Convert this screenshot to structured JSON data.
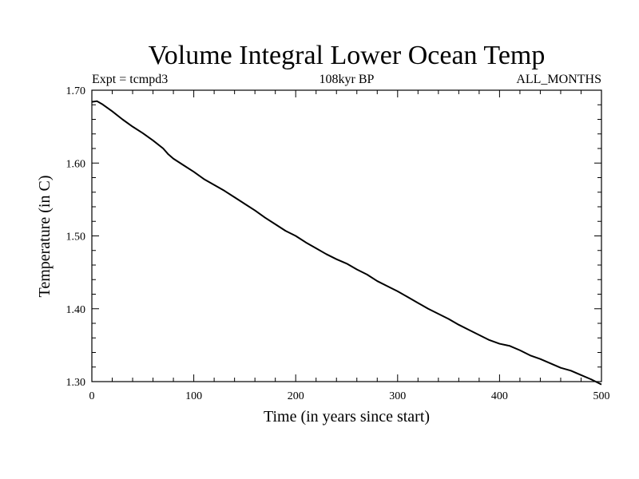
{
  "chart_data": {
    "type": "line",
    "title": "Volume Integral Lower Ocean Temp",
    "subtitle_left": "Expt = tcmpd3",
    "subtitle_center": "108kyr BP",
    "subtitle_right": "ALL_MONTHS",
    "xlabel": "Time (in years since start)",
    "ylabel": "Temperature (in C)",
    "xlim": [
      0,
      500
    ],
    "ylim": [
      1.3,
      1.7
    ],
    "xticks": [
      0,
      100,
      200,
      300,
      400,
      500
    ],
    "xtick_labels": [
      "0",
      "100",
      "200",
      "300",
      "400",
      "500"
    ],
    "yticks": [
      1.3,
      1.4,
      1.5,
      1.6,
      1.7
    ],
    "ytick_labels": [
      "1.30",
      "1.40",
      "1.50",
      "1.60",
      "1.70"
    ],
    "grid": false,
    "line_color": "#000000",
    "series": [
      {
        "x": [
          0,
          5,
          10,
          20,
          30,
          40,
          50,
          60,
          70,
          75,
          80,
          90,
          100,
          110,
          120,
          130,
          140,
          150,
          160,
          170,
          180,
          190,
          200,
          210,
          220,
          230,
          240,
          250,
          260,
          270,
          280,
          290,
          300,
          310,
          320,
          330,
          340,
          350,
          360,
          370,
          380,
          390,
          400,
          410,
          420,
          430,
          440,
          450,
          460,
          470,
          480,
          490,
          500
        ],
        "y": [
          1.684,
          1.685,
          1.681,
          1.671,
          1.66,
          1.65,
          1.641,
          1.631,
          1.62,
          1.612,
          1.606,
          1.597,
          1.588,
          1.578,
          1.57,
          1.562,
          1.553,
          1.544,
          1.535,
          1.525,
          1.516,
          1.507,
          1.5,
          1.491,
          1.483,
          1.475,
          1.468,
          1.462,
          1.454,
          1.447,
          1.438,
          1.431,
          1.424,
          1.416,
          1.408,
          1.4,
          1.393,
          1.386,
          1.378,
          1.371,
          1.364,
          1.357,
          1.352,
          1.349,
          1.343,
          1.336,
          1.331,
          1.325,
          1.319,
          1.315,
          1.309,
          1.303,
          1.296
        ]
      }
    ]
  }
}
